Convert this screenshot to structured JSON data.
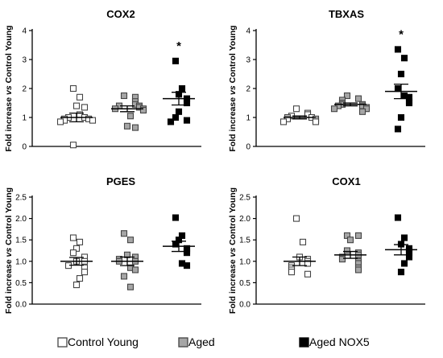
{
  "chart_data": [
    {
      "type": "scatter",
      "title": "COX2",
      "ylabel_parts": [
        "Fold increase ",
        "vs",
        " Control Young"
      ],
      "ylim": [
        0,
        4
      ],
      "yticks": [
        "0",
        "1",
        "2",
        "3",
        "4"
      ],
      "annotations": [
        {
          "group": 2,
          "text": "*"
        }
      ],
      "groups": [
        {
          "name": "Control Young",
          "fill": "#ffffff",
          "values": [
            2.0,
            1.7,
            1.4,
            1.35,
            1.1,
            1.0,
            1.0,
            0.95,
            0.95,
            0.9,
            0.9,
            0.85,
            0.05
          ],
          "mean": 1.0,
          "sem": 0.15
        },
        {
          "name": "Aged",
          "fill": "#a6a6a6",
          "values": [
            1.75,
            1.7,
            1.55,
            1.45,
            1.4,
            1.4,
            1.35,
            1.3,
            1.3,
            1.25,
            1.05,
            0.7,
            0.65
          ],
          "mean": 1.3,
          "sem": 0.1
        },
        {
          "name": "Aged NOX5",
          "fill": "#000000",
          "values": [
            2.95,
            2.0,
            1.8,
            1.65,
            1.5,
            1.2,
            1.0,
            0.9,
            0.85
          ],
          "mean": 1.65,
          "sem": 0.22
        }
      ]
    },
    {
      "type": "scatter",
      "title": "TBXAS",
      "ylabel_parts": [
        "Fold increase ",
        "vs",
        " Control Young"
      ],
      "ylim": [
        0,
        4
      ],
      "yticks": [
        "0",
        "1",
        "2",
        "3",
        "4"
      ],
      "annotations": [
        {
          "group": 2,
          "text": "*"
        }
      ],
      "groups": [
        {
          "name": "Control Young",
          "fill": "#ffffff",
          "values": [
            1.3,
            1.15,
            1.1,
            1.05,
            1.0,
            1.0,
            0.95,
            0.95,
            0.9,
            0.85,
            0.85
          ],
          "mean": 1.0,
          "sem": 0.05
        },
        {
          "name": "Aged",
          "fill": "#a6a6a6",
          "values": [
            1.75,
            1.65,
            1.6,
            1.5,
            1.45,
            1.45,
            1.4,
            1.4,
            1.35,
            1.3,
            1.3,
            1.2
          ],
          "mean": 1.45,
          "sem": 0.05
        },
        {
          "name": "Aged NOX5",
          "fill": "#000000",
          "values": [
            3.35,
            3.05,
            2.5,
            2.0,
            1.75,
            1.7,
            1.55,
            1.5,
            1.0,
            0.6
          ],
          "mean": 1.9,
          "sem": 0.25
        }
      ]
    },
    {
      "type": "scatter",
      "title": "PGES",
      "ylabel_parts": [
        "Fold increase ",
        "vs",
        " Control Young"
      ],
      "ylim": [
        0,
        2.5
      ],
      "yticks": [
        "0.0",
        "0.5",
        "1.0",
        "1.5",
        "2.0",
        "2.5"
      ],
      "annotations": [],
      "groups": [
        {
          "name": "Control Young",
          "fill": "#ffffff",
          "values": [
            1.55,
            1.45,
            1.3,
            1.2,
            1.1,
            1.0,
            1.0,
            0.9,
            0.85,
            0.75,
            0.6,
            0.45
          ],
          "mean": 1.0,
          "sem": 0.09
        },
        {
          "name": "Aged",
          "fill": "#a6a6a6",
          "values": [
            1.65,
            1.5,
            1.15,
            1.1,
            1.05,
            1.0,
            1.0,
            0.85,
            0.8,
            0.65,
            0.4
          ],
          "mean": 1.0,
          "sem": 0.1
        },
        {
          "name": "Aged NOX5",
          "fill": "#000000",
          "values": [
            2.02,
            1.6,
            1.5,
            1.4,
            1.3,
            1.25,
            1.2,
            0.95,
            0.9
          ],
          "mean": 1.35,
          "sem": 0.12
        }
      ]
    },
    {
      "type": "scatter",
      "title": "COX1",
      "ylabel_parts": [
        "Fold increase ",
        "vs",
        " Control Young"
      ],
      "ylim": [
        0,
        2.5
      ],
      "yticks": [
        "0.0",
        "0.5",
        "1.0",
        "1.5",
        "2.0",
        "2.5"
      ],
      "annotations": [],
      "groups": [
        {
          "name": "Control Young",
          "fill": "#ffffff",
          "values": [
            2.0,
            1.45,
            1.1,
            1.05,
            1.0,
            0.95,
            0.9,
            0.85,
            0.8,
            0.75,
            0.7
          ],
          "mean": 1.0,
          "sem": 0.1
        },
        {
          "name": "Aged",
          "fill": "#a6a6a6",
          "values": [
            1.6,
            1.6,
            1.5,
            1.25,
            1.2,
            1.15,
            1.1,
            1.05,
            1.0,
            0.95,
            0.85,
            0.8
          ],
          "mean": 1.15,
          "sem": 0.08
        },
        {
          "name": "Aged NOX5",
          "fill": "#000000",
          "values": [
            2.02,
            1.55,
            1.4,
            1.3,
            1.25,
            1.2,
            1.1,
            0.95,
            0.75
          ],
          "mean": 1.27,
          "sem": 0.12
        }
      ]
    }
  ],
  "legend": {
    "placement": "bottom",
    "items": [
      {
        "label": "Control Young",
        "fill": "#ffffff"
      },
      {
        "label": "Aged",
        "fill": "#a6a6a6"
      },
      {
        "label": "Aged NOX5",
        "fill": "#000000"
      }
    ]
  }
}
